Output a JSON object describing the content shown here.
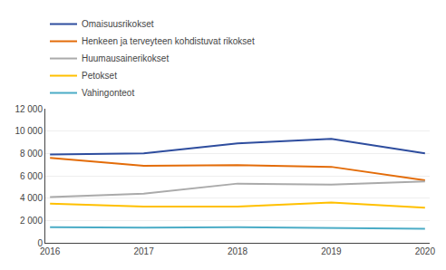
{
  "chart_data": {
    "type": "line",
    "x": [
      2016,
      2017,
      2018,
      2019,
      2020
    ],
    "series": [
      {
        "name": "Omaisuusrikokset",
        "color": "#2e4d9e",
        "values": [
          7900,
          8000,
          8900,
          9300,
          8000
        ]
      },
      {
        "name": "Henkeen ja terveyteen kohdistuvat rikokset",
        "color": "#e36c09",
        "values": [
          7600,
          6900,
          6950,
          6800,
          5600
        ]
      },
      {
        "name": "Huumausainerikokset",
        "color": "#aaaaaa",
        "values": [
          4100,
          4400,
          5300,
          5200,
          5500
        ]
      },
      {
        "name": "Petokset",
        "color": "#ffc000",
        "values": [
          3500,
          3250,
          3250,
          3600,
          3150
        ]
      },
      {
        "name": "Vahingonteot",
        "color": "#4bacc6",
        "values": [
          1400,
          1350,
          1400,
          1350,
          1250
        ]
      }
    ],
    "xlim": [
      2015.95,
      2020.05
    ],
    "xticks": [
      2016,
      2017,
      2018,
      2019,
      2020
    ],
    "ylim": [
      0,
      12000
    ],
    "yticks": [
      0,
      {
        "value": 2000,
        "label": "2 000"
      },
      {
        "value": 4000,
        "label": "4 000"
      },
      {
        "value": 6000,
        "label": "6 000"
      },
      {
        "value": 8000,
        "label": "8 000"
      },
      {
        "value": 10000,
        "label": "10 000"
      },
      {
        "value": 12000,
        "label": "12 000"
      }
    ],
    "grid": "y",
    "legend": "upper left"
  }
}
